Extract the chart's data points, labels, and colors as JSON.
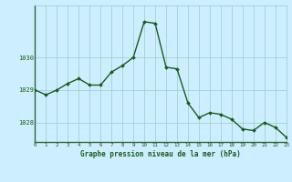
{
  "hours": [
    0,
    1,
    2,
    3,
    4,
    5,
    6,
    7,
    8,
    9,
    10,
    11,
    12,
    13,
    14,
    15,
    16,
    17,
    18,
    19,
    20,
    21,
    22,
    23
  ],
  "pressure": [
    1029.0,
    1028.85,
    1029.0,
    1029.2,
    1029.35,
    1029.15,
    1029.15,
    1029.55,
    1029.75,
    1030.0,
    1031.1,
    1031.05,
    1029.7,
    1029.65,
    1028.6,
    1028.15,
    1028.3,
    1028.25,
    1028.1,
    1027.8,
    1027.75,
    1028.0,
    1027.85,
    1027.55
  ],
  "line_color": "#1a5c1a",
  "marker_color": "#1a5c1a",
  "bg_color": "#cceeff",
  "grid_color": "#99cccc",
  "axis_color": "#1a5c1a",
  "spine_color": "#336633",
  "title": "Graphe pression niveau de la mer (hPa)",
  "ylabel_ticks": [
    1028,
    1029,
    1030
  ],
  "xlim": [
    0,
    23
  ],
  "ylim": [
    1027.4,
    1031.6
  ]
}
